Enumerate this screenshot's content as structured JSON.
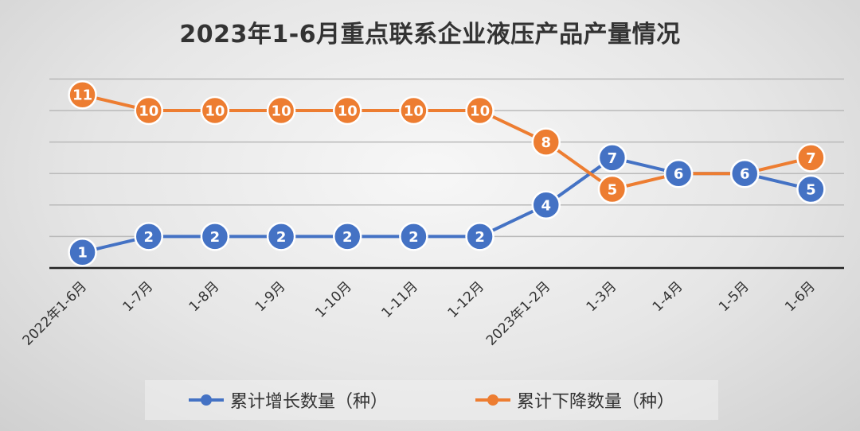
{
  "chart_data": {
    "type": "line",
    "title": "2023年1-6月重点联系企业液压产品产量情况",
    "categories": [
      "2022年1-6月",
      "1-7月",
      "1-8月",
      "1-9月",
      "1-10月",
      "1-11月",
      "1-12月",
      "2023年1-2月",
      "1-3月",
      "1-4月",
      "1-5月",
      "1-6月"
    ],
    "series": [
      {
        "name": "累计增长数量（种）",
        "color": "#4472C4",
        "values": [
          1,
          2,
          2,
          2,
          2,
          2,
          2,
          4,
          7,
          6,
          6,
          5
        ]
      },
      {
        "name": "累计下降数量（种）",
        "color": "#ED7D31",
        "values": [
          11,
          10,
          10,
          10,
          10,
          10,
          10,
          8,
          5,
          6,
          6,
          7
        ]
      }
    ],
    "ylim": [
      0,
      12
    ],
    "grid": true,
    "legend": "bottom",
    "xlabel": "",
    "ylabel": ""
  }
}
